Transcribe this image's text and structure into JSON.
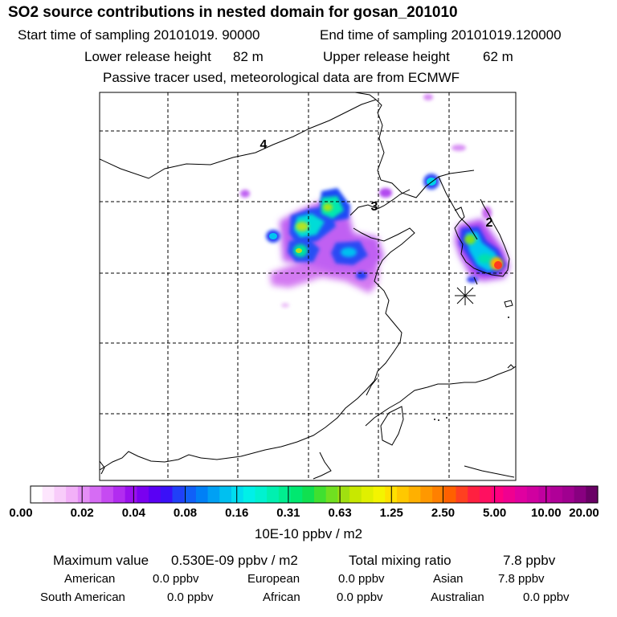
{
  "title": "SO2 source contributions in nested domain for gosan_201010",
  "sampling": {
    "start_label": "Start time of sampling 20101019. 90000",
    "end_label": "End time of sampling 20101019.120000"
  },
  "release": {
    "lower_label": "Lower release height",
    "lower_value": "82 m",
    "upper_label": "Upper release height",
    "upper_value": "62 m"
  },
  "note": "Passive tracer used, meteorological data are from ECMWF",
  "map": {
    "region_labels": [
      "4",
      "3",
      "2"
    ],
    "receptor_marker": "star"
  },
  "colorbar": {
    "ticks": [
      "0.00",
      "0.02",
      "0.04",
      "0.08",
      "0.16",
      "0.31",
      "0.63",
      "1.25",
      "2.50",
      "5.00",
      "10.00",
      "20.00"
    ],
    "unit": "10E-10 ppbv / m2",
    "colors": [
      "#ffffff",
      "#fde6fd",
      "#f8ccfa",
      "#f2b0f8",
      "#e48ef6",
      "#d66cf4",
      "#c64af2",
      "#b22cf0",
      "#9a10ee",
      "#7a00f0",
      "#5a00f4",
      "#3a10f8",
      "#2040f8",
      "#1060f8",
      "#0080f6",
      "#00a0f4",
      "#00c0f0",
      "#00ddf0",
      "#00f0e8",
      "#00f2d0",
      "#00f0b0",
      "#00ee90",
      "#00e870",
      "#10e050",
      "#40e030",
      "#70e020",
      "#a0e010",
      "#c8e800",
      "#e0f000",
      "#f4f400",
      "#ffe000",
      "#ffc800",
      "#ffb000",
      "#ff9800",
      "#ff8000",
      "#ff6000",
      "#ff4020",
      "#ff2040",
      "#ff1060",
      "#ff0080",
      "#f00090",
      "#e000a0",
      "#d000a0",
      "#c000a0",
      "#b00098",
      "#a00090",
      "#880080",
      "#6a0066"
    ]
  },
  "stats": {
    "max_label": "Maximum value",
    "max_value": "0.530E-09 ppbv / m2",
    "total_label": "Total mixing ratio",
    "total_value": "7.8 ppbv"
  },
  "regions": [
    {
      "name": "American",
      "value": "0.0 ppbv"
    },
    {
      "name": "European",
      "value": "0.0 ppbv"
    },
    {
      "name": "Asian",
      "value": "7.8 ppbv"
    },
    {
      "name": "South American",
      "value": "0.0 ppbv"
    },
    {
      "name": "African",
      "value": "0.0 ppbv"
    },
    {
      "name": "Australian",
      "value": "0.0 ppbv"
    }
  ]
}
